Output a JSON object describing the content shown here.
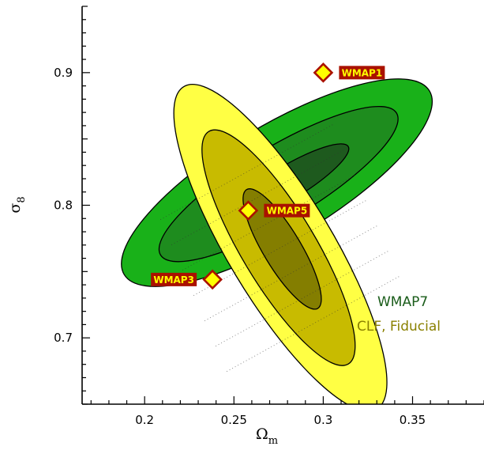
{
  "chart_data": {
    "type": "scatter",
    "xlabel": "Ω",
    "xlabel_sub": "m",
    "ylabel": "σ",
    "ylabel_sub": "8",
    "xlim": [
      0.165,
      0.39
    ],
    "ylim": [
      0.65,
      0.95
    ],
    "x_ticks": [
      0.2,
      0.25,
      0.3,
      0.35
    ],
    "x_tick_labels": [
      "0.2",
      "0.25",
      "0.3",
      "0.35"
    ],
    "y_ticks": [
      0.7,
      0.8,
      0.9
    ],
    "y_tick_labels": [
      "0.7",
      "0.8",
      "0.9"
    ],
    "grid": false,
    "legend": [
      {
        "label": "WMAP7",
        "color": "#1a5c1a"
      },
      {
        "label": "CLF, Fiducial",
        "color": "#8a8000"
      }
    ],
    "contours": [
      {
        "series": "WMAP7",
        "level": "outer",
        "center": [
          0.274,
          0.817
        ],
        "semi_major": 0.11,
        "semi_minor": 0.037,
        "angle_deg": 39,
        "color": "#19b119"
      },
      {
        "series": "WMAP7",
        "level": "middle",
        "center": [
          0.275,
          0.816
        ],
        "semi_major": 0.085,
        "semi_minor": 0.024,
        "angle_deg": 39,
        "color": "#1e8c1e"
      },
      {
        "series": "WMAP7",
        "level": "inner",
        "center": [
          0.279,
          0.816
        ],
        "semi_major": 0.045,
        "semi_minor": 0.011,
        "angle_deg": 39,
        "color": "#1e5a1e"
      },
      {
        "series": "CLF, Fiducial",
        "level": "outer",
        "center": [
          0.276,
          0.768
        ],
        "semi_major": 0.133,
        "semi_minor": 0.0305,
        "angle_deg": -66,
        "color": "#ffff44"
      },
      {
        "series": "CLF, Fiducial",
        "level": "middle",
        "center": [
          0.275,
          0.768
        ],
        "semi_major": 0.096,
        "semi_minor": 0.0215,
        "angle_deg": -66,
        "color": "#c8bb00"
      },
      {
        "series": "CLF, Fiducial",
        "level": "inner",
        "center": [
          0.277,
          0.767
        ],
        "semi_major": 0.049,
        "semi_minor": 0.011,
        "angle_deg": -66,
        "color": "#847e00"
      }
    ],
    "points": [
      {
        "label": "WMAP1",
        "x": 0.3,
        "y": 0.9
      },
      {
        "label": "WMAP3",
        "x": 0.238,
        "y": 0.744
      },
      {
        "label": "WMAP5",
        "x": 0.258,
        "y": 0.796
      }
    ],
    "marker_fill": "#ffff00",
    "marker_edge": "#aa1100",
    "label_box_color": "#aa1100",
    "label_text_color": "#ffff00"
  }
}
